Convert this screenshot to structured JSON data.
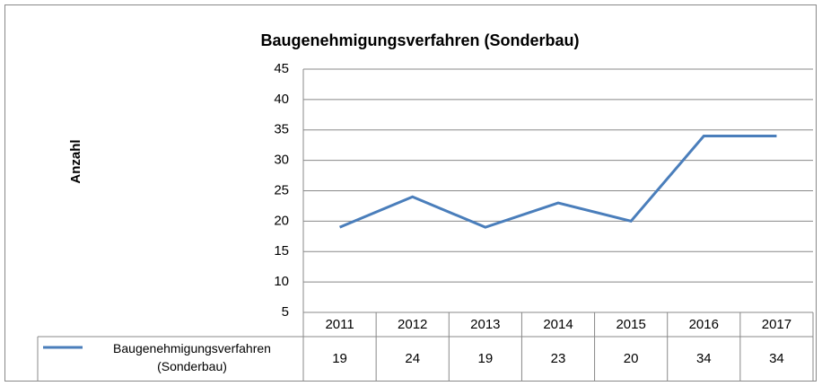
{
  "chart_data": {
    "type": "line",
    "title": "Baugenehmigungsverfahren (Sonderbau)",
    "y_label": "Anzahl",
    "categories": [
      "2011",
      "2012",
      "2013",
      "2014",
      "2015",
      "2016",
      "2017"
    ],
    "series": [
      {
        "name": "Baugenehmigungsverfahren (Sonderbau)",
        "color": "#4a7ebb",
        "values": [
          19,
          24,
          19,
          23,
          20,
          34,
          34
        ]
      }
    ],
    "ylim": [
      5,
      45
    ],
    "yticks": [
      5,
      10,
      15,
      20,
      25,
      30,
      35,
      40,
      45
    ],
    "grid": true
  }
}
